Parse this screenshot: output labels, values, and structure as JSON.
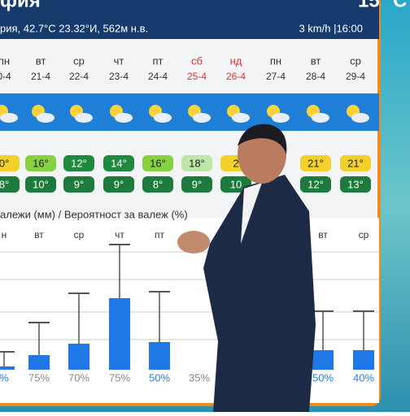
{
  "header": {
    "title": "фия",
    "location": "рия, 42.7°С 23.32°И, 562м н.в.",
    "wind_time": "3 km/h |16:00",
    "temp": "15 °C"
  },
  "days": [
    {
      "name": "пн",
      "date": "0-4",
      "max": "0°",
      "min": "8°",
      "max_color": "#f2d12c",
      "weekend": false
    },
    {
      "name": "вт",
      "date": "21-4",
      "max": "16°",
      "min": "10°",
      "max_color": "#86d13f",
      "weekend": false
    },
    {
      "name": "ср",
      "date": "22-4",
      "max": "12°",
      "min": "9°",
      "max_color": "#1f8a3f",
      "weekend": false
    },
    {
      "name": "чт",
      "date": "23-4",
      "max": "14°",
      "min": "9°",
      "max_color": "#1f8a3f",
      "weekend": false
    },
    {
      "name": "пт",
      "date": "24-4",
      "max": "16°",
      "min": "8°",
      "max_color": "#86d13f",
      "weekend": false
    },
    {
      "name": "сб",
      "date": "25-4",
      "max": "18°",
      "min": "9°",
      "max_color": "#bfe5a8",
      "weekend": true
    },
    {
      "name": "нд",
      "date": "26-4",
      "max": "2",
      "min": "10",
      "max_color": "#f2d12c",
      "weekend": true
    },
    {
      "name": "пн",
      "date": "27-4",
      "max": null,
      "min": null,
      "max_color": "#f2d12c",
      "weekend": false
    },
    {
      "name": "вт",
      "date": "28-4",
      "max": "21°",
      "min": "12°",
      "max_color": "#f2d12c",
      "weekend": false
    },
    {
      "name": "ср",
      "date": "29-4",
      "max": "21°",
      "min": "13°",
      "max_color": "#f2d12c",
      "weekend": false
    }
  ],
  "precip": {
    "title": "алежи (мм) / Вероятност за валеж (%)",
    "ylim": [
      0,
      8
    ],
    "days": [
      "н",
      "вт",
      "ср",
      "чт",
      "пт",
      null,
      null,
      null,
      "вт",
      "ср"
    ],
    "values": [
      0.2,
      0.9,
      1.6,
      4.4,
      1.7,
      null,
      null,
      null,
      1.2,
      1.2
    ],
    "upper": [
      1.1,
      2.9,
      4.7,
      7.7,
      4.8,
      null,
      null,
      null,
      3.6,
      3.6
    ],
    "labels": [
      "%",
      "75%",
      "70%",
      "75%",
      "50%",
      "35%",
      null,
      null,
      "50%",
      "40%"
    ],
    "label_colors": [
      "#2a7fe0",
      "#888888",
      "#888888",
      "#888888",
      "#2a7fe0",
      "#888888",
      null,
      null,
      "#2a7fe0",
      "#2a7fe0"
    ],
    "color": "#1f78e6"
  }
}
